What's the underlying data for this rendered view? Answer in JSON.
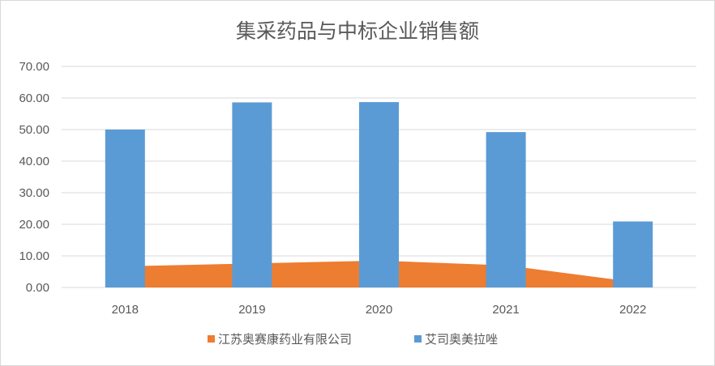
{
  "chart_data": {
    "type": "bar",
    "title": "集采药品与中标企业销售额",
    "xlabel": "",
    "ylabel": "",
    "categories": [
      "2018",
      "2019",
      "2020",
      "2021",
      "2022"
    ],
    "ylim": [
      0,
      70
    ],
    "yticks": [
      "0.00",
      "10.00",
      "20.00",
      "30.00",
      "40.00",
      "50.00",
      "60.00",
      "70.00"
    ],
    "grid": true,
    "legend_position": "bottom",
    "series": [
      {
        "name": "江苏奥赛康药业有限公司",
        "type": "area",
        "color": "#ED7D31",
        "values": [
          6.7,
          7.6,
          8.5,
          7.0,
          1.8
        ]
      },
      {
        "name": "艾司奥美拉唑",
        "type": "bar",
        "color": "#5B9BD5",
        "values": [
          50.0,
          58.6,
          58.7,
          49.2,
          20.9
        ]
      }
    ]
  }
}
